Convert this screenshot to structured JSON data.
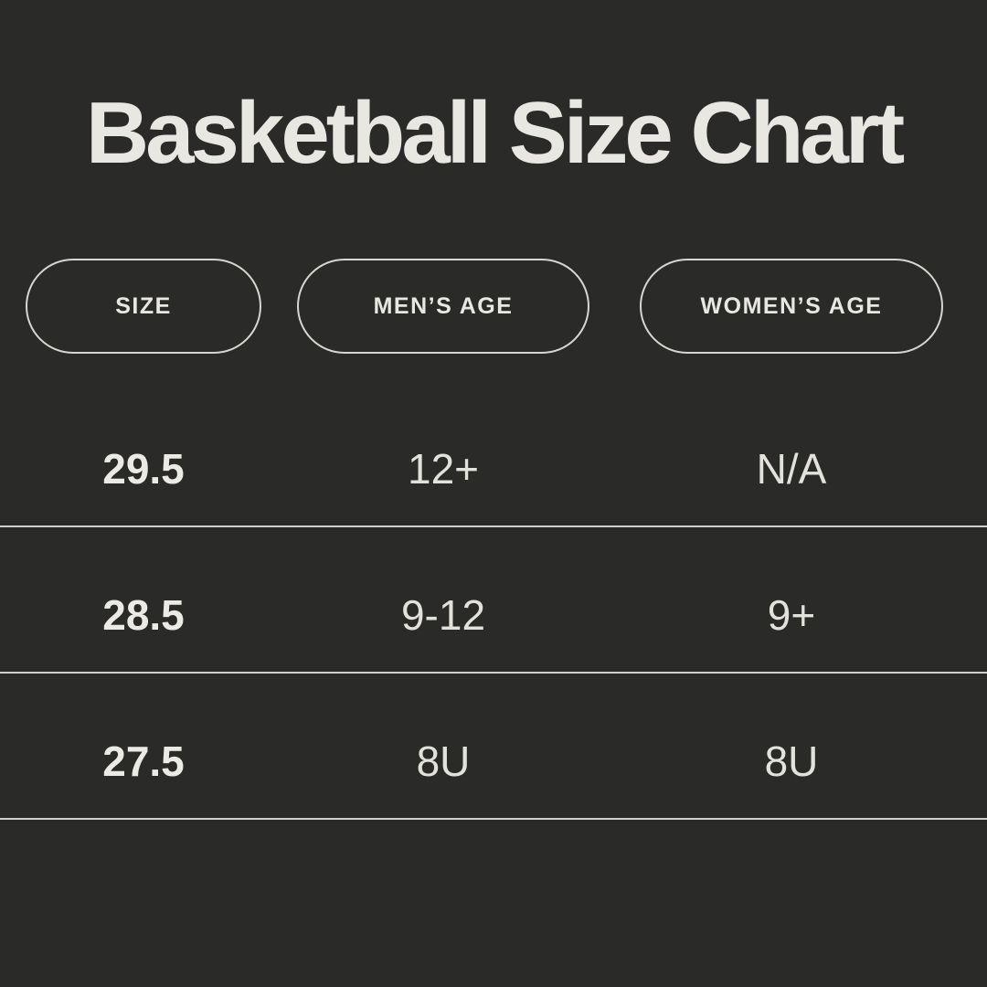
{
  "title": "Basketball Size Chart",
  "colors": {
    "background": "#2a2a28",
    "text": "#e9e7e1",
    "divider": "#cfcdc7",
    "pill_border": "#d8d6d0"
  },
  "table": {
    "columns": [
      {
        "key": "size",
        "label": "SIZE"
      },
      {
        "key": "mens_age",
        "label": "MEN’S AGE"
      },
      {
        "key": "womens_age",
        "label": "WOMEN’S AGE"
      }
    ],
    "rows": [
      {
        "size": "29.5",
        "mens_age": "12+",
        "womens_age": "N/A"
      },
      {
        "size": "28.5",
        "mens_age": "9-12",
        "womens_age": "9+"
      },
      {
        "size": "27.5",
        "mens_age": "8U",
        "womens_age": "8U"
      }
    ]
  },
  "chart_data": {
    "type": "table",
    "title": "Basketball Size Chart",
    "columns": [
      "SIZE",
      "MEN’S AGE",
      "WOMEN’S AGE"
    ],
    "rows": [
      [
        "29.5",
        "12+",
        "N/A"
      ],
      [
        "28.5",
        "9-12",
        "9+"
      ],
      [
        "27.5",
        "8U",
        "8U"
      ]
    ]
  }
}
